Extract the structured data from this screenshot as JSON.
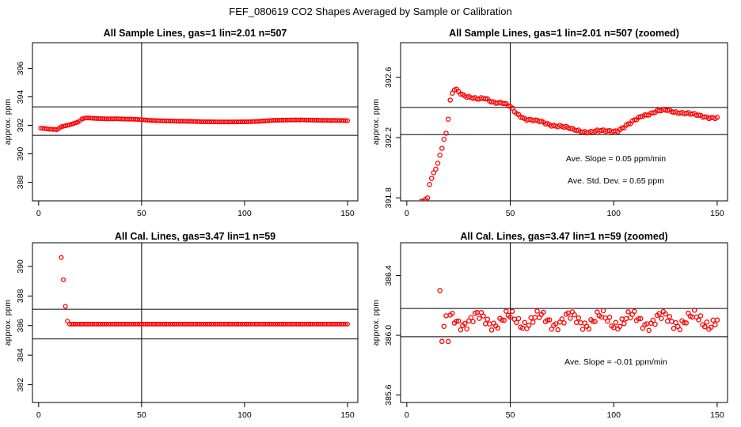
{
  "figure_title": "FEF_080619  CO2 Shapes Averaged by Sample or Calibration",
  "colors": {
    "points": "#ff0000",
    "axes": "#000000"
  },
  "chart_data": [
    {
      "type": "scatter",
      "title": "All Sample Lines, gas=1 lin=2.01 n=507",
      "xlabel": "",
      "ylabel": "approx. ppm",
      "xlim": [
        -3,
        155
      ],
      "ylim": [
        386.7,
        397.8
      ],
      "xticks": [
        0,
        50,
        100,
        150
      ],
      "yticks": [
        388,
        390,
        392,
        394,
        396
      ],
      "hlines": [
        393.3,
        391.3
      ],
      "vlines": [
        50
      ],
      "annotations": [],
      "points": {
        "generator": "sample",
        "zoomed": false,
        "x": [
          1,
          150
        ]
      }
    },
    {
      "type": "scatter",
      "title": "All Sample Lines, gas=1 lin=2.01 n=507 (zoomed)",
      "xlabel": "",
      "ylabel": "approx. ppm",
      "xlim": [
        -3,
        155
      ],
      "ylim": [
        391.78,
        392.83
      ],
      "xticks": [
        0,
        50,
        100,
        150
      ],
      "yticks": [
        391.8,
        392.2,
        392.6
      ],
      "hlines": [
        392.4,
        392.22
      ],
      "vlines": [
        50
      ],
      "annotations": [
        "Ave. Slope =  0.05  ppm/min",
        "Ave. Std. Dev. =  0.65  ppm"
      ],
      "points": {
        "generator": "sample",
        "zoomed": true,
        "x": [
          1,
          150
        ]
      }
    },
    {
      "type": "scatter",
      "title": "All Cal. Lines, gas=3.47 lin=1 n=59",
      "xlabel": "",
      "ylabel": "approx. ppm",
      "xlim": [
        -3,
        155
      ],
      "ylim": [
        380.8,
        391.6
      ],
      "xticks": [
        0,
        50,
        100,
        150
      ],
      "yticks": [
        382,
        384,
        386,
        388,
        390
      ],
      "hlines": [
        387.1,
        385.1
      ],
      "vlines": [
        50
      ],
      "annotations": [],
      "points": {
        "generator": "cal",
        "zoomed": false,
        "x": [
          11,
          150
        ]
      }
    },
    {
      "type": "scatter",
      "title": "All Cal. Lines, gas=3.47 lin=1 n=59 (zoomed)",
      "xlabel": "",
      "ylabel": "approx. ppm",
      "xlim": [
        -3,
        155
      ],
      "ylim": [
        385.55,
        386.62
      ],
      "xticks": [
        0,
        50,
        100,
        150
      ],
      "yticks": [
        385.6,
        386.0,
        386.4
      ],
      "hlines": [
        386.18,
        385.99
      ],
      "vlines": [
        50
      ],
      "annotations": [
        "Ave. Slope =  -0.01  ppm/min"
      ],
      "points": {
        "generator": "cal",
        "zoomed": true,
        "x": [
          16,
          150
        ]
      }
    }
  ]
}
